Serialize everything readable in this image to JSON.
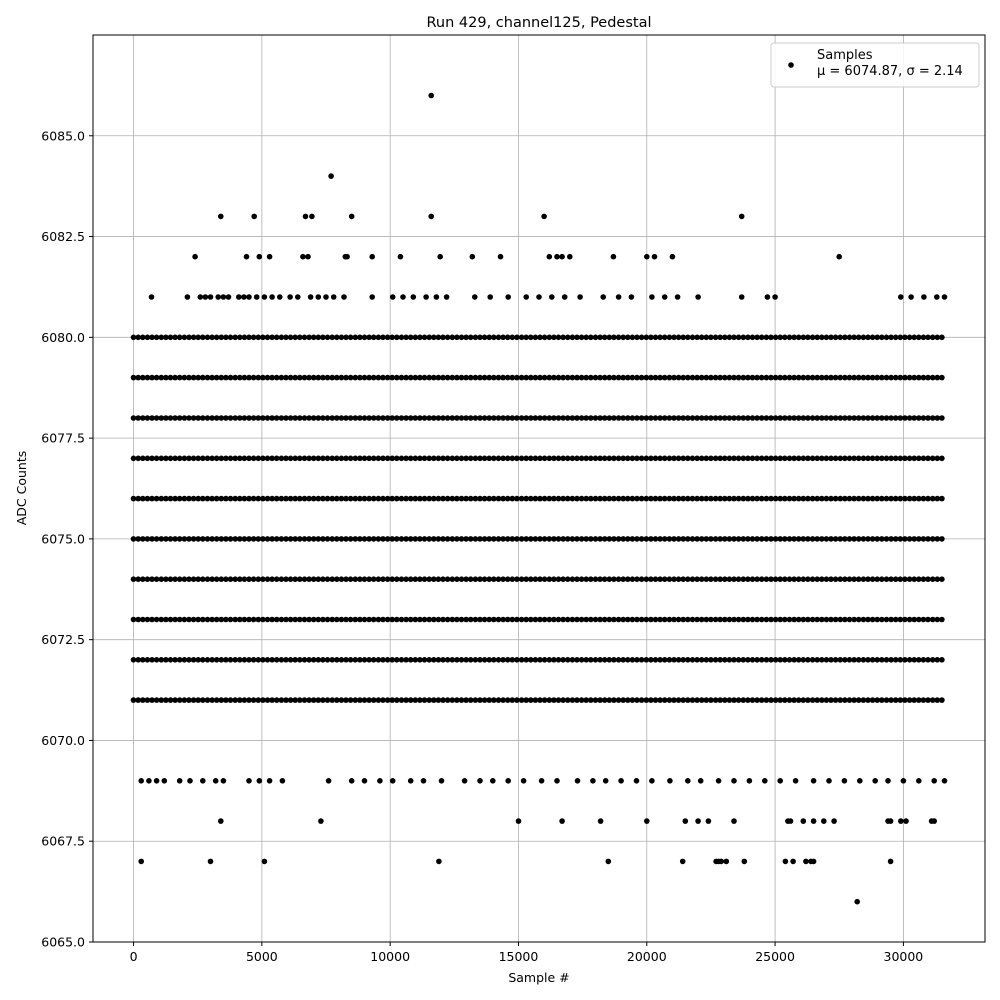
{
  "chart_data": {
    "type": "scatter",
    "title": "Run 429, channel125, Pedestal",
    "xlabel": "Sample #",
    "ylabel": "ADC Counts",
    "xlim": [
      -1580,
      33180
    ],
    "ylim": [
      6065.0,
      6087.5
    ],
    "xticks": [
      0,
      5000,
      10000,
      15000,
      20000,
      25000,
      30000
    ],
    "xtick_labels": [
      "0",
      "5000",
      "10000",
      "15000",
      "20000",
      "25000",
      "30000"
    ],
    "yticks": [
      6065.0,
      6067.5,
      6070.0,
      6072.5,
      6075.0,
      6077.5,
      6080.0,
      6082.5,
      6085.0
    ],
    "ytick_labels": [
      "6065.0",
      "6067.5",
      "6070.0",
      "6072.5",
      "6075.0",
      "6077.5",
      "6080.0",
      "6082.5",
      "6085.0"
    ],
    "grid": true,
    "legend": {
      "placement": "top-right",
      "entries": [
        {
          "label": "Samples",
          "sublabel": "μ = 6074.87, σ = 2.14",
          "marker": "circle",
          "color": "#000000"
        }
      ]
    },
    "series": [
      {
        "name": "Samples",
        "color": "#000000",
        "sample_range": [
          0,
          31600
        ],
        "dense_levels": [
          6071,
          6072,
          6073,
          6074,
          6075,
          6076,
          6077,
          6078,
          6079,
          6080
        ],
        "sparse_points": [
          [
            11600,
            6086
          ],
          [
            7700,
            6084
          ],
          [
            3400,
            6083
          ],
          [
            4700,
            6083
          ],
          [
            6700,
            6083
          ],
          [
            6950,
            6083
          ],
          [
            8500,
            6083
          ],
          [
            11600,
            6083
          ],
          [
            16000,
            6083
          ],
          [
            23700,
            6083
          ],
          [
            2400,
            6082
          ],
          [
            4400,
            6082
          ],
          [
            4900,
            6082
          ],
          [
            5300,
            6082
          ],
          [
            6600,
            6082
          ],
          [
            6800,
            6082
          ],
          [
            8250,
            6082
          ],
          [
            8320,
            6082
          ],
          [
            9300,
            6082
          ],
          [
            10400,
            6082
          ],
          [
            11950,
            6082
          ],
          [
            13200,
            6082
          ],
          [
            14300,
            6082
          ],
          [
            16200,
            6082
          ],
          [
            16500,
            6082
          ],
          [
            16700,
            6082
          ],
          [
            17000,
            6082
          ],
          [
            18700,
            6082
          ],
          [
            20000,
            6082
          ],
          [
            20300,
            6082
          ],
          [
            21000,
            6082
          ],
          [
            27500,
            6082
          ],
          [
            700,
            6081
          ],
          [
            2100,
            6081
          ],
          [
            2600,
            6081
          ],
          [
            2800,
            6081
          ],
          [
            3000,
            6081
          ],
          [
            3300,
            6081
          ],
          [
            3500,
            6081
          ],
          [
            3700,
            6081
          ],
          [
            4100,
            6081
          ],
          [
            4300,
            6081
          ],
          [
            4500,
            6081
          ],
          [
            4800,
            6081
          ],
          [
            5100,
            6081
          ],
          [
            5400,
            6081
          ],
          [
            5700,
            6081
          ],
          [
            6100,
            6081
          ],
          [
            6400,
            6081
          ],
          [
            6900,
            6081
          ],
          [
            7200,
            6081
          ],
          [
            7500,
            6081
          ],
          [
            7800,
            6081
          ],
          [
            8200,
            6081
          ],
          [
            9300,
            6081
          ],
          [
            10100,
            6081
          ],
          [
            10500,
            6081
          ],
          [
            10900,
            6081
          ],
          [
            11400,
            6081
          ],
          [
            11800,
            6081
          ],
          [
            12200,
            6081
          ],
          [
            13300,
            6081
          ],
          [
            13900,
            6081
          ],
          [
            14600,
            6081
          ],
          [
            15300,
            6081
          ],
          [
            15800,
            6081
          ],
          [
            16300,
            6081
          ],
          [
            16800,
            6081
          ],
          [
            17400,
            6081
          ],
          [
            18300,
            6081
          ],
          [
            18900,
            6081
          ],
          [
            19400,
            6081
          ],
          [
            20200,
            6081
          ],
          [
            20700,
            6081
          ],
          [
            21200,
            6081
          ],
          [
            22000,
            6081
          ],
          [
            23700,
            6081
          ],
          [
            24700,
            6081
          ],
          [
            25000,
            6081
          ],
          [
            29900,
            6081
          ],
          [
            30300,
            6081
          ],
          [
            30800,
            6081
          ],
          [
            31300,
            6081
          ],
          [
            31600,
            6081
          ],
          [
            300,
            6069
          ],
          [
            600,
            6069
          ],
          [
            900,
            6069
          ],
          [
            1200,
            6069
          ],
          [
            1800,
            6069
          ],
          [
            2200,
            6069
          ],
          [
            2700,
            6069
          ],
          [
            3200,
            6069
          ],
          [
            3500,
            6069
          ],
          [
            4500,
            6069
          ],
          [
            4900,
            6069
          ],
          [
            5300,
            6069
          ],
          [
            5800,
            6069
          ],
          [
            7600,
            6069
          ],
          [
            8500,
            6069
          ],
          [
            9000,
            6069
          ],
          [
            9600,
            6069
          ],
          [
            10100,
            6069
          ],
          [
            10800,
            6069
          ],
          [
            11300,
            6069
          ],
          [
            12000,
            6069
          ],
          [
            12900,
            6069
          ],
          [
            13500,
            6069
          ],
          [
            14000,
            6069
          ],
          [
            14600,
            6069
          ],
          [
            15200,
            6069
          ],
          [
            15900,
            6069
          ],
          [
            16500,
            6069
          ],
          [
            17300,
            6069
          ],
          [
            17900,
            6069
          ],
          [
            18400,
            6069
          ],
          [
            19000,
            6069
          ],
          [
            19600,
            6069
          ],
          [
            20200,
            6069
          ],
          [
            20900,
            6069
          ],
          [
            21600,
            6069
          ],
          [
            22100,
            6069
          ],
          [
            22800,
            6069
          ],
          [
            23400,
            6069
          ],
          [
            24000,
            6069
          ],
          [
            24600,
            6069
          ],
          [
            25200,
            6069
          ],
          [
            25800,
            6069
          ],
          [
            26500,
            6069
          ],
          [
            27100,
            6069
          ],
          [
            27700,
            6069
          ],
          [
            28300,
            6069
          ],
          [
            28900,
            6069
          ],
          [
            29400,
            6069
          ],
          [
            30000,
            6069
          ],
          [
            30600,
            6069
          ],
          [
            31200,
            6069
          ],
          [
            31600,
            6069
          ],
          [
            3400,
            6068
          ],
          [
            7300,
            6068
          ],
          [
            15000,
            6068
          ],
          [
            16700,
            6068
          ],
          [
            18200,
            6068
          ],
          [
            20000,
            6068
          ],
          [
            21500,
            6068
          ],
          [
            22000,
            6068
          ],
          [
            22400,
            6068
          ],
          [
            23400,
            6068
          ],
          [
            25500,
            6068
          ],
          [
            25600,
            6068
          ],
          [
            26100,
            6068
          ],
          [
            26500,
            6068
          ],
          [
            26900,
            6068
          ],
          [
            27300,
            6068
          ],
          [
            29400,
            6068
          ],
          [
            29500,
            6068
          ],
          [
            29900,
            6068
          ],
          [
            30100,
            6068
          ],
          [
            31100,
            6068
          ],
          [
            31200,
            6068
          ],
          [
            300,
            6067
          ],
          [
            3000,
            6067
          ],
          [
            5100,
            6067
          ],
          [
            11900,
            6067
          ],
          [
            18500,
            6067
          ],
          [
            21400,
            6067
          ],
          [
            22700,
            6067
          ],
          [
            22800,
            6067
          ],
          [
            22900,
            6067
          ],
          [
            23100,
            6067
          ],
          [
            23800,
            6067
          ],
          [
            25400,
            6067
          ],
          [
            25700,
            6067
          ],
          [
            26200,
            6067
          ],
          [
            26400,
            6067
          ],
          [
            26500,
            6067
          ],
          [
            29500,
            6067
          ],
          [
            28200,
            6066
          ]
        ]
      }
    ]
  }
}
